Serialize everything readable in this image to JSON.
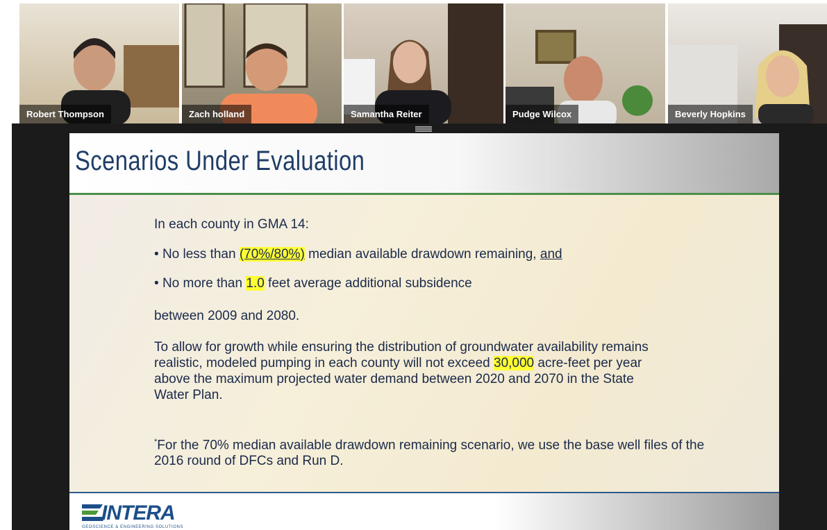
{
  "participants": [
    {
      "name": "Robert Thompson"
    },
    {
      "name": "Zach holland"
    },
    {
      "name": "Samantha Reiter"
    },
    {
      "name": "Pudge Wilcox"
    },
    {
      "name": "Beverly Hopkins"
    }
  ],
  "slide": {
    "title": "Scenarios Under Evaluation",
    "intro": "In each county in GMA 14:",
    "bullets": [
      {
        "marker": "•",
        "before": "No less than ",
        "highlight": "(70%/80%)",
        "after": " median available drawdown remaining, ",
        "underline": "and"
      },
      {
        "marker": "•",
        "before": "No more than ",
        "highlight": "1.0",
        "after": " feet average additional subsidence"
      }
    ],
    "period": "between 2009 and 2080.",
    "paragraph": {
      "before": "To allow for growth while ensuring the distribution of groundwater availability remains realistic, modeled pumping in each county will not exceed ",
      "highlight": "30,000",
      "after": " acre-feet per year above the maximum projected water demand between 2020 and 2070 in the State Water Plan."
    },
    "footnote": {
      "marker": "*",
      "text": "For the 70% median available drawdown remaining scenario, we use the base well files of the 2016 round of DFCs and Run D."
    },
    "logo": {
      "name": "INTERA",
      "tagline": "GEOSCIENCE & ENGINEERING SOLUTIONS"
    }
  }
}
